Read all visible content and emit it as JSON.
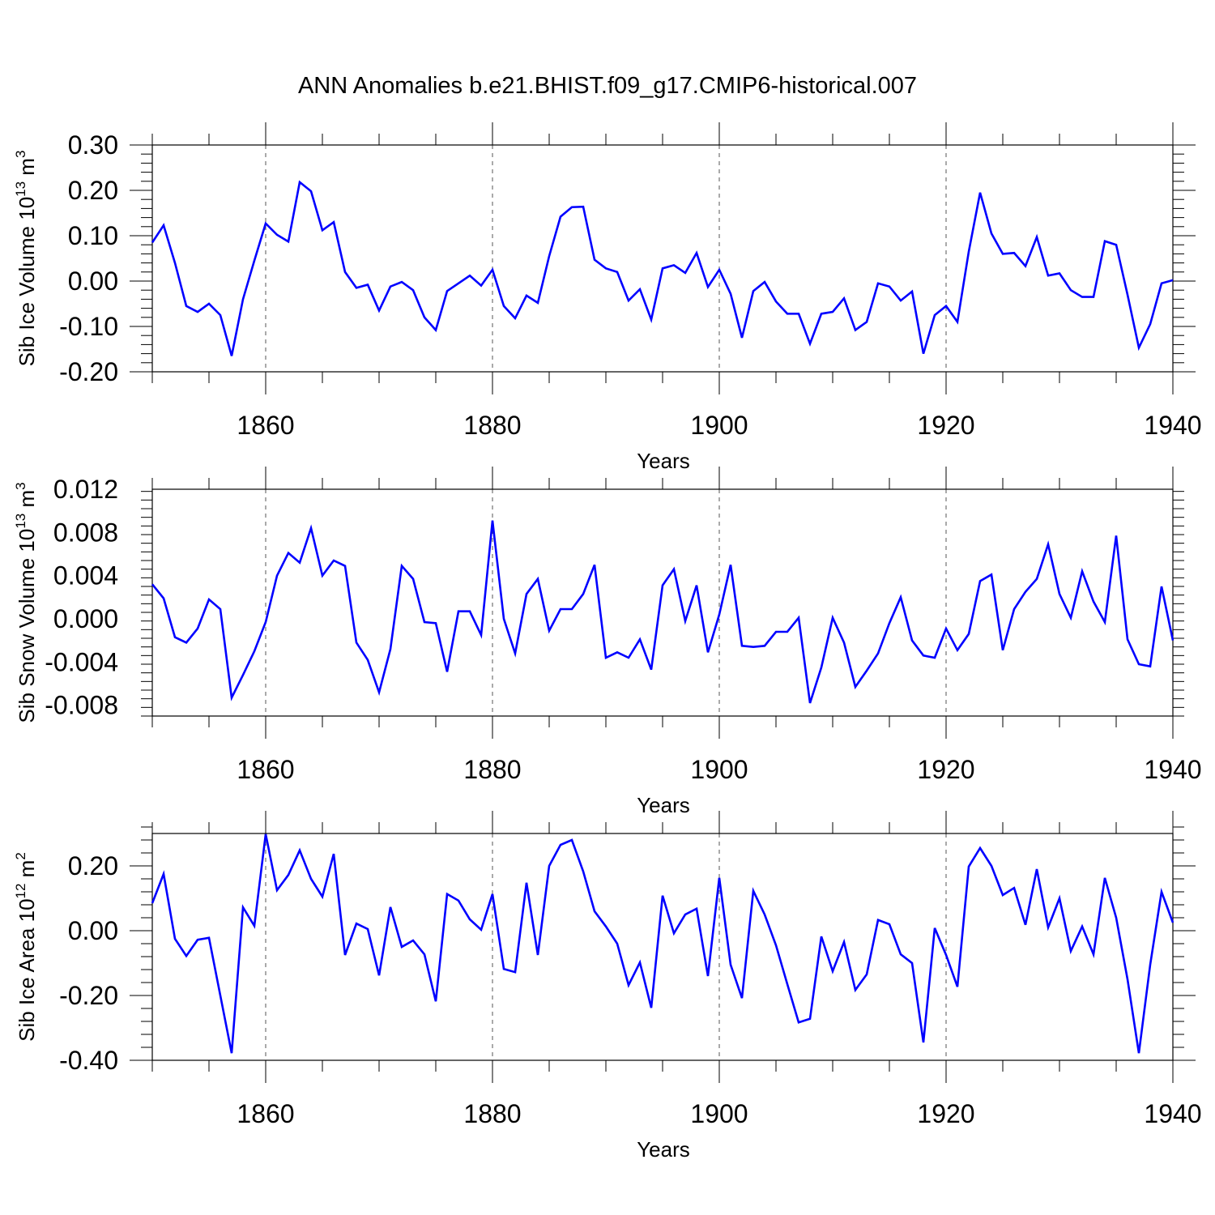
{
  "title": "ANN Anomalies b.e21.BHIST.f09_g17.CMIP6-historical.007",
  "colors": {
    "line": "#0000ff",
    "axis": "#000000",
    "grid": "#555555"
  },
  "chart_data": [
    {
      "type": "line",
      "ylabel": {
        "text": "Sib Ice Volume 10",
        "exp": "13",
        "unit": " m",
        "unit_exp": "3"
      },
      "xlabel": "Years",
      "xlim": [
        1850,
        1940
      ],
      "ylim": [
        -0.2,
        0.3
      ],
      "yticks": [
        -0.2,
        -0.1,
        0.0,
        0.1,
        0.2,
        0.3
      ],
      "ytick_labels": [
        "-0.20",
        "-0.10",
        "0.00",
        "0.10",
        "0.20",
        "0.30"
      ],
      "xticks": [
        1860,
        1880,
        1900,
        1920,
        1940
      ],
      "xtick_labels": [
        "1860",
        "1880",
        "1900",
        "1920",
        "1940"
      ],
      "grid": "vertical dashed at major x ticks",
      "series": [
        {
          "name": "Sib Ice Volume",
          "x_start": 1850,
          "values": [
            0.085,
            0.123,
            0.04,
            -0.055,
            -0.068,
            -0.05,
            -0.075,
            -0.165,
            -0.04,
            0.045,
            0.127,
            0.102,
            0.087,
            0.218,
            0.198,
            0.112,
            0.13,
            0.02,
            -0.015,
            -0.008,
            -0.065,
            -0.012,
            -0.002,
            -0.02,
            -0.08,
            -0.108,
            -0.022,
            -0.005,
            0.012,
            -0.01,
            0.025,
            -0.055,
            -0.082,
            -0.032,
            -0.048,
            0.055,
            0.142,
            0.163,
            0.164,
            0.047,
            0.028,
            0.02,
            -0.043,
            -0.018,
            -0.085,
            0.028,
            0.035,
            0.018,
            0.062,
            -0.013,
            0.025,
            -0.028,
            -0.125,
            -0.022,
            -0.002,
            -0.045,
            -0.072,
            -0.072,
            -0.138,
            -0.072,
            -0.068,
            -0.038,
            -0.108,
            -0.09,
            -0.005,
            -0.012,
            -0.043,
            -0.023,
            -0.16,
            -0.075,
            -0.055,
            -0.09,
            0.065,
            0.195,
            0.105,
            0.06,
            0.062,
            0.033,
            0.097,
            0.012,
            0.017,
            -0.02,
            -0.035,
            -0.035,
            0.088,
            0.08,
            -0.03,
            -0.147,
            -0.095,
            -0.005,
            0.002
          ]
        }
      ]
    },
    {
      "type": "line",
      "ylabel": {
        "text": "Sib Snow Volume 10",
        "exp": "13",
        "unit": " m",
        "unit_exp": "3"
      },
      "xlabel": "Years",
      "xlim": [
        1850,
        1940
      ],
      "ylim": [
        -0.009,
        0.012
      ],
      "yticks": [
        -0.008,
        -0.004,
        0.0,
        0.004,
        0.008,
        0.012
      ],
      "ytick_labels": [
        "-0.008",
        "-0.004",
        "0.000",
        "0.004",
        "0.008",
        "0.012"
      ],
      "xticks": [
        1860,
        1880,
        1900,
        1920,
        1940
      ],
      "xtick_labels": [
        "1860",
        "1880",
        "1900",
        "1920",
        "1940"
      ],
      "grid": "vertical dashed at major x ticks",
      "series": [
        {
          "name": "Sib Snow Volume",
          "x_start": 1850,
          "values": [
            0.0032,
            0.0019,
            -0.0017,
            -0.0022,
            -0.0009,
            0.0018,
            0.0009,
            -0.0073,
            -0.0052,
            -0.003,
            -0.0003,
            0.004,
            0.0061,
            0.0052,
            0.0084,
            0.004,
            0.0054,
            0.0049,
            -0.0022,
            -0.0038,
            -0.0068,
            -0.0028,
            0.0049,
            0.0037,
            -0.0003,
            -0.0004,
            -0.0049,
            0.0007,
            0.0007,
            -0.0015,
            0.0091,
            0.0,
            -0.0032,
            0.0023,
            0.0037,
            -0.0011,
            0.0009,
            0.0009,
            0.0023,
            0.005,
            -0.0036,
            -0.0031,
            -0.0036,
            -0.0019,
            -0.0047,
            0.0031,
            0.0046,
            -0.0002,
            0.0031,
            -0.0031,
            0.0004,
            0.005,
            -0.0025,
            -0.0026,
            -0.0025,
            -0.0012,
            -0.0012,
            0.0001,
            -0.0078,
            -0.0045,
            0.0001,
            -0.0022,
            -0.0063,
            -0.0048,
            -0.0032,
            -0.0004,
            0.002,
            -0.002,
            -0.0034,
            -0.0036,
            -0.0009,
            -0.0029,
            -0.0014,
            0.0035,
            0.0041,
            -0.0029,
            0.0009,
            0.0025,
            0.0037,
            0.0069,
            0.0023,
            0.0001,
            0.0044,
            0.0016,
            -0.0003,
            0.0077,
            -0.0019,
            -0.0042,
            -0.0044,
            0.003,
            -0.002
          ]
        }
      ]
    },
    {
      "type": "line",
      "ylabel": {
        "text": "Sib Ice Area 10",
        "exp": "12",
        "unit": " m",
        "unit_exp": "2"
      },
      "xlabel": "Years",
      "xlim": [
        1850,
        1940
      ],
      "ylim": [
        -0.4,
        0.3
      ],
      "yticks": [
        -0.4,
        -0.2,
        0.0,
        0.2
      ],
      "ytick_labels": [
        "-0.40",
        "-0.20",
        "0.00",
        "0.20"
      ],
      "xticks": [
        1860,
        1880,
        1900,
        1920,
        1940
      ],
      "xtick_labels": [
        "1860",
        "1880",
        "1900",
        "1920",
        "1940"
      ],
      "grid": "vertical dashed at major x ticks",
      "series": [
        {
          "name": "Sib Ice Area",
          "x_start": 1850,
          "values": [
            0.085,
            0.175,
            -0.025,
            -0.078,
            -0.028,
            -0.022,
            -0.2,
            -0.378,
            0.072,
            0.015,
            0.298,
            0.125,
            0.172,
            0.248,
            0.16,
            0.105,
            0.237,
            -0.075,
            0.022,
            0.005,
            -0.138,
            0.073,
            -0.05,
            -0.03,
            -0.073,
            -0.218,
            0.113,
            0.093,
            0.035,
            0.003,
            0.113,
            -0.118,
            -0.128,
            0.148,
            -0.075,
            0.2,
            0.265,
            0.28,
            0.183,
            0.06,
            0.013,
            -0.04,
            -0.168,
            -0.098,
            -0.238,
            0.108,
            -0.008,
            0.05,
            0.068,
            -0.14,
            0.163,
            -0.105,
            -0.208,
            0.123,
            0.05,
            -0.045,
            -0.165,
            -0.283,
            -0.272,
            -0.018,
            -0.125,
            -0.035,
            -0.183,
            -0.135,
            0.033,
            0.02,
            -0.073,
            -0.1,
            -0.345,
            0.008,
            -0.075,
            -0.173,
            0.198,
            0.255,
            0.2,
            0.11,
            0.132,
            0.018,
            0.19,
            0.01,
            0.1,
            -0.063,
            0.013,
            -0.073,
            0.163,
            0.04,
            -0.15,
            -0.378,
            -0.105,
            0.12,
            0.025
          ]
        }
      ]
    }
  ]
}
